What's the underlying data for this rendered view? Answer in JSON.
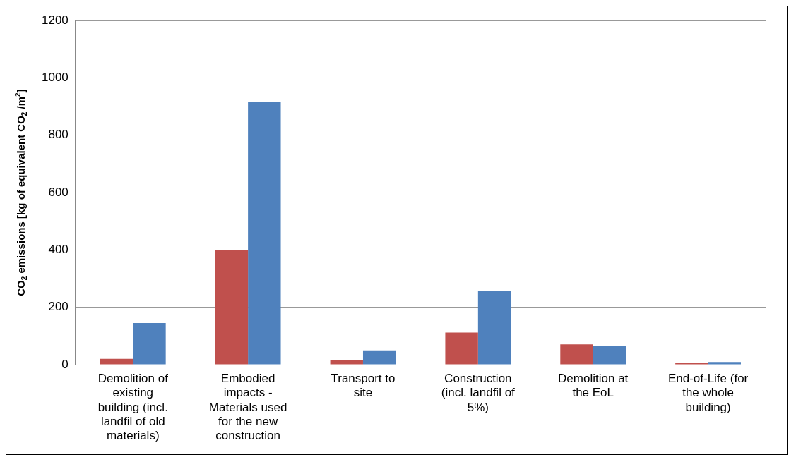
{
  "chart_data": {
    "type": "bar",
    "ylabel": "CO$_{2}$ emissions [kg of equivalent CO$_{2}$ /m$^{2}$]",
    "categories": [
      [
        "Demolition of",
        "existing",
        "building (incl.",
        "landfil of old",
        "materials)"
      ],
      [
        "Embodied",
        "impacts -",
        "Materials used",
        "for the new",
        "construction"
      ],
      [
        "Transport to",
        "site"
      ],
      [
        "Construction",
        "(incl. landfil of",
        "5%)"
      ],
      [
        "Demolition at",
        "the EoL"
      ],
      [
        "End-of-Life (for",
        "the whole",
        "building)"
      ]
    ],
    "series": [
      {
        "color": "#c0504d",
        "values": [
          20,
          400,
          15,
          112,
          71,
          5
        ]
      },
      {
        "color": "#4f81bd",
        "values": [
          145,
          915,
          50,
          256,
          66,
          9
        ]
      }
    ],
    "ylim": [
      0,
      1200
    ],
    "yticks": [
      0,
      200,
      400,
      600,
      800,
      1000,
      1200
    ],
    "grid": "y",
    "legend": false
  }
}
